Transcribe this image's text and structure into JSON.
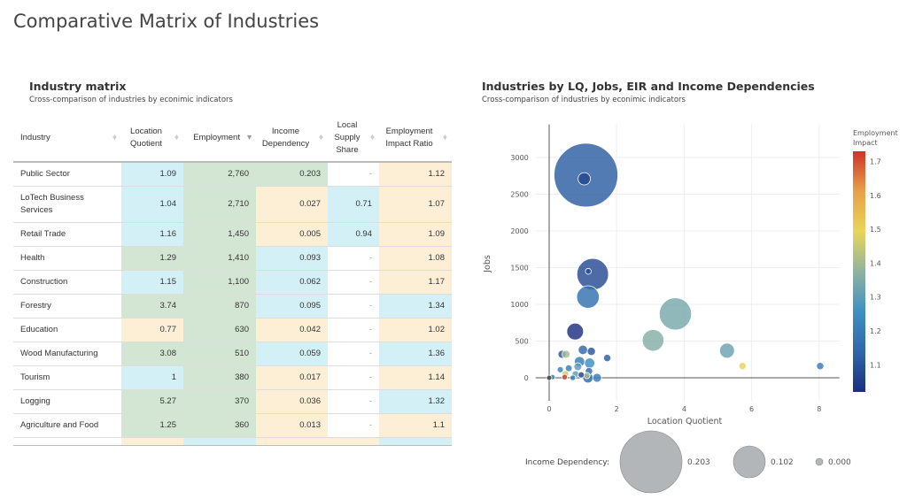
{
  "page_title": "Comparative Matrix of Industries",
  "table_panel": {
    "title": "Industry matrix",
    "subtitle": "Cross-comparison of industries by econimic indicators",
    "columns": [
      "Industry",
      "Location Quotient",
      "Employment",
      "Income Dependency",
      "Local Supply Share",
      "Employment Impact Ratio"
    ],
    "sorted_column": "Employment",
    "rows": [
      {
        "industry": "Public Sector",
        "lq": "1.09",
        "emp": "2,760",
        "inc": "0.203",
        "lss": "-",
        "eir": "1.12",
        "colors": [
          "b",
          "g",
          "g",
          "w",
          "y"
        ]
      },
      {
        "industry": "LoTech Business Services",
        "lq": "1.04",
        "emp": "2,710",
        "inc": "0.027",
        "lss": "0.71",
        "eir": "1.07",
        "colors": [
          "b",
          "g",
          "y",
          "b",
          "y"
        ]
      },
      {
        "industry": "Retail Trade",
        "lq": "1.16",
        "emp": "1,450",
        "inc": "0.005",
        "lss": "0.94",
        "eir": "1.09",
        "colors": [
          "b",
          "g",
          "y",
          "b",
          "y"
        ]
      },
      {
        "industry": "Health",
        "lq": "1.29",
        "emp": "1,410",
        "inc": "0.093",
        "lss": "-",
        "eir": "1.08",
        "colors": [
          "g",
          "g",
          "b",
          "w",
          "y"
        ]
      },
      {
        "industry": "Construction",
        "lq": "1.15",
        "emp": "1,100",
        "inc": "0.062",
        "lss": "-",
        "eir": "1.17",
        "colors": [
          "b",
          "g",
          "b",
          "w",
          "y"
        ]
      },
      {
        "industry": "Forestry",
        "lq": "3.74",
        "emp": "870",
        "inc": "0.095",
        "lss": "-",
        "eir": "1.34",
        "colors": [
          "g",
          "g",
          "b",
          "w",
          "b"
        ]
      },
      {
        "industry": "Education",
        "lq": "0.77",
        "emp": "630",
        "inc": "0.042",
        "lss": "-",
        "eir": "1.02",
        "colors": [
          "y",
          "g",
          "y",
          "w",
          "y"
        ]
      },
      {
        "industry": "Wood Manufacturing",
        "lq": "3.08",
        "emp": "510",
        "inc": "0.059",
        "lss": "-",
        "eir": "1.36",
        "colors": [
          "g",
          "g",
          "b",
          "w",
          "b"
        ]
      },
      {
        "industry": "Tourism",
        "lq": "1",
        "emp": "380",
        "inc": "0.017",
        "lss": "-",
        "eir": "1.14",
        "colors": [
          "b",
          "g",
          "y",
          "w",
          "y"
        ]
      },
      {
        "industry": "Logging",
        "lq": "5.27",
        "emp": "370",
        "inc": "0.036",
        "lss": "-",
        "eir": "1.32",
        "colors": [
          "g",
          "g",
          "y",
          "w",
          "b"
        ]
      },
      {
        "industry": "Agriculture and Food",
        "lq": "1.25",
        "emp": "360",
        "inc": "0.013",
        "lss": "-",
        "eir": "1.1",
        "colors": [
          "g",
          "g",
          "y",
          "w",
          "y"
        ]
      }
    ],
    "partial_row_colors": [
      "y",
      "b",
      "y",
      "y",
      "b"
    ]
  },
  "chart_panel": {
    "title": "Industries by LQ, Jobs, EIR and Income Dependencies",
    "subtitle": "Cross-comparison of industries by econimic indicators"
  },
  "chart_data": {
    "type": "scatter",
    "xlabel": "Location Quotient",
    "ylabel": "Jobs",
    "xlim": [
      -0.4,
      8.6
    ],
    "ylim": [
      -450,
      3450
    ],
    "xticks": [
      0,
      2,
      4,
      6,
      8
    ],
    "yticks": [
      0,
      500,
      1000,
      1500,
      2000,
      2500,
      3000
    ],
    "grid": true,
    "size_variable": "Income Dependency",
    "color_variable": "Employment Impact",
    "colorbar": {
      "title": "Employment Impact",
      "range": [
        1.02,
        1.73
      ],
      "ticks": [
        1.1,
        1.2,
        1.3,
        1.4,
        1.5,
        1.6,
        1.7
      ],
      "colors": [
        "#1c2f80",
        "#2f66a8",
        "#3f8fc4",
        "#8fb3a0",
        "#e8d55a",
        "#e8a04a",
        "#cc3328"
      ]
    },
    "size_legend": {
      "label": "Income Dependency:",
      "values": [
        "0.203",
        "0.102",
        "0.000"
      ]
    },
    "points": [
      {
        "name": "Public Sector",
        "x": 1.09,
        "y": 2760,
        "size": 0.203,
        "color": 1.12
      },
      {
        "name": "Health",
        "x": 1.29,
        "y": 1410,
        "size": 0.093,
        "color": 1.08
      },
      {
        "name": "Forestry",
        "x": 3.74,
        "y": 870,
        "size": 0.095,
        "color": 1.34
      },
      {
        "name": "Construction",
        "x": 1.15,
        "y": 1100,
        "size": 0.062,
        "color": 1.17
      },
      {
        "name": "Wood Manufacturing",
        "x": 3.08,
        "y": 510,
        "size": 0.059,
        "color": 1.36
      },
      {
        "name": "Education",
        "x": 0.77,
        "y": 630,
        "size": 0.042,
        "color": 1.02
      },
      {
        "name": "Logging",
        "x": 5.27,
        "y": 370,
        "size": 0.036,
        "color": 1.32
      },
      {
        "name": "LoTech Business Services",
        "x": 1.04,
        "y": 2710,
        "size": 0.027,
        "color": 1.07
      },
      {
        "name": "Tourism",
        "x": 1,
        "y": 380,
        "size": 0.017,
        "color": 1.14
      },
      {
        "name": "Agriculture and Food",
        "x": 1.25,
        "y": 360,
        "size": 0.013,
        "color": 1.1
      },
      {
        "name": "Retail Trade",
        "x": 1.16,
        "y": 1450,
        "size": 0.005,
        "color": 1.09
      },
      {
        "x": 0.38,
        "y": 320,
        "size": 0.012,
        "color": 1.1
      },
      {
        "x": 0.5,
        "y": 320,
        "size": 0.012,
        "color": 1.4
      },
      {
        "x": 1.72,
        "y": 270,
        "size": 0.01,
        "color": 1.12
      },
      {
        "x": 8.03,
        "y": 160,
        "size": 0.01,
        "color": 1.2
      },
      {
        "x": 5.73,
        "y": 160,
        "size": 0.01,
        "color": 1.5
      },
      {
        "x": 0.9,
        "y": 220,
        "size": 0.02,
        "color": 1.2
      },
      {
        "x": 1.2,
        "y": 200,
        "size": 0.02,
        "color": 1.25
      },
      {
        "x": 0.58,
        "y": 130,
        "size": 0.008,
        "color": 1.2
      },
      {
        "x": 0.33,
        "y": 110,
        "size": 0.006,
        "color": 1.2
      },
      {
        "x": 0.85,
        "y": 150,
        "size": 0.012,
        "color": 1.3
      },
      {
        "x": 0.78,
        "y": 50,
        "size": 0.008,
        "color": 1.3
      },
      {
        "x": 0.48,
        "y": 50,
        "size": 0.008,
        "color": 1.45
      },
      {
        "x": 0.46,
        "y": 10,
        "size": 0.004,
        "color": 1.72
      },
      {
        "x": 0.7,
        "y": 0,
        "size": 0.004,
        "color": 1.2
      },
      {
        "x": 1.42,
        "y": 0,
        "size": 0.015,
        "color": 1.2
      },
      {
        "x": 1.15,
        "y": 0,
        "size": 0.02,
        "color": 1.15
      },
      {
        "x": 0.1,
        "y": 10,
        "size": 0.003,
        "color": 1.2
      },
      {
        "x": 1.12,
        "y": 30,
        "size": 0.006,
        "color": 1.4
      },
      {
        "x": 1.18,
        "y": 90,
        "size": 0.01,
        "color": 1.15
      },
      {
        "x": 0.95,
        "y": 40,
        "size": 0.006,
        "color": 1.05
      },
      {
        "x": 0,
        "y": 0,
        "size": 0.003,
        "color": null
      }
    ]
  }
}
